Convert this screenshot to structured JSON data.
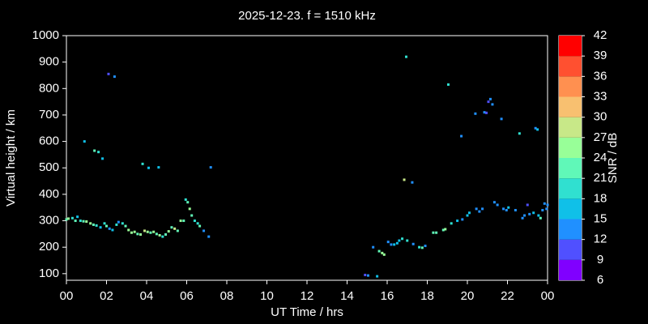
{
  "chart_data": {
    "type": "scatter",
    "title": "2025-12-23. f = 1510 kHz",
    "x_label": "UT Time / hrs",
    "y_label": "Virtual height / km",
    "xlim": [
      0,
      24
    ],
    "ylim": [
      75,
      1000
    ],
    "xticks": [
      {
        "value": 0,
        "label": "00"
      },
      {
        "value": 2,
        "label": "02"
      },
      {
        "value": 4,
        "label": "04"
      },
      {
        "value": 6,
        "label": "06"
      },
      {
        "value": 8,
        "label": "08"
      },
      10,
      12,
      14,
      16,
      18,
      20,
      22,
      {
        "value": 24,
        "label": "00"
      }
    ],
    "yticks": [
      100,
      200,
      300,
      400,
      500,
      600,
      700,
      800,
      900,
      1000
    ],
    "colorbar": {
      "label": "SNR / dB",
      "ticks": [
        6,
        9,
        12,
        15,
        18,
        21,
        24,
        27,
        30,
        33,
        36,
        39,
        42
      ],
      "colors": [
        "#8000ff",
        "#5050ff",
        "#2090ff",
        "#10c0e8",
        "#30e0d0",
        "#60f8b8",
        "#98ff98",
        "#c8e888",
        "#f8c070",
        "#ff9050",
        "#ff5030",
        "#ff0000"
      ]
    },
    "x": [
      0,
      0.1,
      0.3,
      0.45,
      0.55,
      0.7,
      0.85,
      1.0,
      1.2,
      1.35,
      1.5,
      1.7,
      1.9,
      2.0,
      2.15,
      2.3,
      2.5,
      2.6,
      2.8,
      2.95,
      3.1,
      3.25,
      3.4,
      3.55,
      3.7,
      3.9,
      4.05,
      4.2,
      4.35,
      4.5,
      4.65,
      4.8,
      4.95,
      5.1,
      5.25,
      5.4,
      5.55,
      5.7,
      5.85,
      5.95,
      6.05,
      6.15,
      6.25,
      6.4,
      6.55,
      6.65,
      6.85,
      7.1,
      0.9,
      1.4,
      1.6,
      1.8,
      2.1,
      2.4,
      3.8,
      4.1,
      4.6,
      7.2,
      14.9,
      15.05,
      15.3,
      15.5,
      15.6,
      15.75,
      15.85,
      16.05,
      16.2,
      16.35,
      16.5,
      16.6,
      16.75,
      16.85,
      16.95,
      17.0,
      17.25,
      17.3,
      17.6,
      17.75,
      17.9,
      18.3,
      18.45,
      18.8,
      18.9,
      19.05,
      19.2,
      19.5,
      19.7,
      19.75,
      20.0,
      20.1,
      20.4,
      20.45,
      20.6,
      20.75,
      20.85,
      20.95,
      21.05,
      21.15,
      21.25,
      21.35,
      21.5,
      21.7,
      21.8,
      21.95,
      22.05,
      22.4,
      22.6,
      22.75,
      22.85,
      23.0,
      23.1,
      23.3,
      23.4,
      23.5,
      23.55,
      23.65,
      23.75,
      23.85,
      23.95,
      24.0
    ],
    "values": [
      305,
      308,
      310,
      300,
      315,
      300,
      298,
      297,
      290,
      285,
      282,
      275,
      290,
      280,
      270,
      265,
      285,
      295,
      290,
      280,
      265,
      255,
      258,
      250,
      248,
      262,
      258,
      255,
      258,
      250,
      245,
      240,
      248,
      260,
      275,
      270,
      262,
      300,
      300,
      380,
      370,
      345,
      320,
      300,
      290,
      280,
      262,
      240,
      600,
      565,
      560,
      535,
      855,
      845,
      515,
      500,
      502,
      502,
      95,
      93,
      200,
      90,
      185,
      178,
      172,
      220,
      210,
      210,
      215,
      225,
      232,
      455,
      920,
      225,
      445,
      212,
      200,
      198,
      205,
      255,
      255,
      265,
      268,
      815,
      290,
      300,
      620,
      305,
      320,
      330,
      705,
      345,
      335,
      345,
      710,
      708,
      750,
      760,
      740,
      370,
      360,
      685,
      345,
      340,
      350,
      340,
      630,
      310,
      320,
      360,
      325,
      330,
      650,
      645,
      320,
      310,
      340,
      365,
      345,
      360
    ],
    "snr": [
      21,
      24,
      20,
      22,
      17,
      20,
      21,
      24,
      25,
      22,
      20,
      17,
      20,
      22,
      14,
      16,
      19,
      14,
      20,
      22,
      25,
      26,
      25,
      22,
      24,
      28,
      25,
      22,
      26,
      22,
      24,
      20,
      23,
      25,
      21,
      28,
      22,
      24,
      22,
      20,
      22,
      25,
      23,
      20,
      19,
      22,
      14,
      13,
      16,
      22,
      20,
      16,
      10,
      13,
      18,
      17,
      17,
      13,
      10,
      12,
      14,
      16,
      22,
      25,
      24,
      14,
      14,
      16,
      15,
      17,
      18,
      29,
      18,
      20,
      13,
      14,
      20,
      22,
      13,
      23,
      22,
      23,
      25,
      19,
      19,
      17,
      13,
      14,
      16,
      16,
      13,
      13,
      13,
      14,
      13,
      11,
      11,
      13,
      14,
      13,
      13,
      14,
      14,
      13,
      16,
      13,
      19,
      13,
      13,
      11,
      14,
      17,
      14,
      16,
      16,
      21,
      13,
      14,
      14,
      14
    ]
  }
}
